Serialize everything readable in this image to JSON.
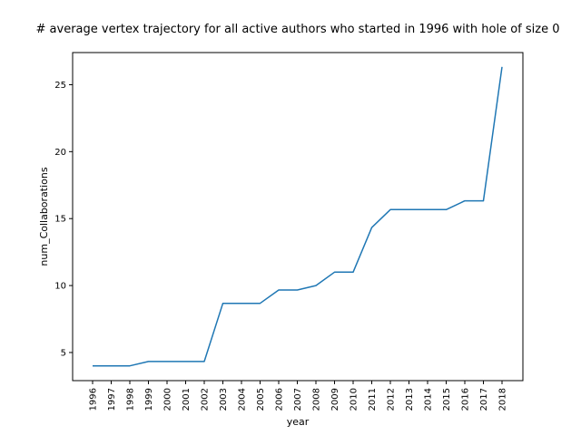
{
  "chart_data": {
    "type": "line",
    "title": "# average vertex trajectory for all active authors who started in 1996 with hole of size 0",
    "xlabel": "year",
    "ylabel": "num_Collaborations",
    "categories": [
      "1996",
      "1997",
      "1998",
      "1999",
      "2000",
      "2001",
      "2002",
      "2003",
      "2004",
      "2005",
      "2006",
      "2007",
      "2008",
      "2009",
      "2010",
      "2011",
      "2012",
      "2013",
      "2014",
      "2015",
      "2016",
      "2017",
      "2018"
    ],
    "series": [
      {
        "values": [
          4.0,
          4.0,
          4.0,
          4.33,
          4.33,
          4.33,
          4.33,
          8.67,
          8.67,
          8.67,
          9.67,
          9.67,
          10.0,
          11.0,
          11.0,
          14.33,
          15.67,
          15.67,
          15.67,
          15.67,
          16.33,
          16.33,
          26.33
        ],
        "color": "#1f77b4"
      }
    ],
    "yticks": [
      5,
      10,
      15,
      20,
      25
    ],
    "ylim": [
      2.9,
      27.4
    ],
    "grid": false,
    "legend": "none"
  }
}
